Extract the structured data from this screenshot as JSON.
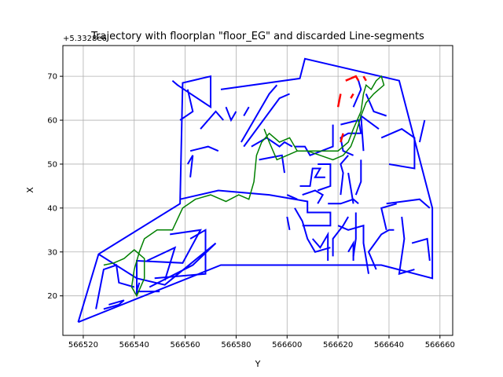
{
  "chart_data": {
    "type": "line",
    "title": "Trajectory with floorplan \"floor_EG\" and discarded Line-segments",
    "xlabel": "Y",
    "ylabel": "X",
    "y_offset_label": "+5.3328e6",
    "xlim": [
      566512,
      566665
    ],
    "ylim": [
      11,
      77
    ],
    "x_ticks": [
      566520,
      566540,
      566560,
      566580,
      566600,
      566620,
      566640,
      566660
    ],
    "y_ticks": [
      20,
      30,
      40,
      50,
      60,
      70
    ],
    "x_tick_labels": [
      "566520",
      "566540",
      "566560",
      "566580",
      "566600",
      "566620",
      "566640",
      "566660"
    ],
    "y_tick_labels": [
      "20",
      "30",
      "40",
      "50",
      "60",
      "70"
    ],
    "grid": true,
    "colors": {
      "floorplan": "#0000ff",
      "trajectory": "#008000",
      "discarded": "#ff0000"
    },
    "series": [
      {
        "type": "floorplan",
        "segments": [
          [
            [
              566518,
              14
            ],
            [
              566526,
              29.5
            ],
            [
              566558,
              41
            ],
            [
              566559,
              68.5
            ],
            [
              566570,
              70
            ],
            [
              566570,
              63
            ],
            [
              566557,
              68
            ],
            [
              566555,
              69
            ]
          ],
          [
            [
              566574,
              67
            ],
            [
              566605,
              69.5
            ],
            [
              566607,
              74
            ],
            [
              566644,
              69
            ],
            [
              566657,
              40
            ],
            [
              566657,
              24
            ],
            [
              566637,
              27
            ],
            [
              566611,
              27
            ],
            [
              566574,
              27
            ],
            [
              566518,
              14
            ]
          ],
          [
            [
              566526,
              29.5
            ],
            [
              566541,
              24
            ],
            [
              566552,
              22.5
            ],
            [
              566572,
              32
            ],
            [
              566563,
              27
            ],
            [
              566546,
              22
            ]
          ],
          [
            [
              566545,
              28
            ],
            [
              566556,
              31
            ],
            [
              566552,
              23.5
            ]
          ],
          [
            [
              566554,
              34
            ],
            [
              566566,
              35
            ],
            [
              566559,
              27.5
            ],
            [
              566541,
              28
            ],
            [
              566541,
              20
            ]
          ],
          [
            [
              566562,
              33
            ],
            [
              566568,
              35
            ],
            [
              566568,
              25
            ],
            [
              566548,
              24
            ]
          ],
          [
            [
              566530,
              18
            ],
            [
              566536,
              19
            ],
            [
              566534,
              18
            ],
            [
              566528,
              17
            ]
          ],
          [
            [
              566525,
              17
            ],
            [
              566528,
              26
            ],
            [
              566533,
              27
            ],
            [
              566534,
              23
            ],
            [
              566540,
              22
            ]
          ],
          [
            [
              566542,
              23
            ],
            [
              566541,
              21
            ],
            [
              566550,
              21
            ]
          ],
          [
            [
              566558,
              42
            ],
            [
              566573,
              44
            ],
            [
              566593,
              43
            ],
            [
              566608,
              41.5
            ],
            [
              566608,
              39
            ],
            [
              566617,
              39
            ],
            [
              566617,
              36
            ],
            [
              566606,
              36
            ]
          ],
          [
            [
              566620,
              36
            ],
            [
              566624,
              35
            ],
            [
              566630,
              36
            ],
            [
              566630,
              32
            ],
            [
              566632,
              25
            ]
          ],
          [
            [
              566635,
              26
            ],
            [
              566632,
              30
            ],
            [
              566637,
              34
            ],
            [
              566640,
              35
            ],
            [
              566642,
              35
            ]
          ],
          [
            [
              566643,
              41
            ],
            [
              566637,
              40
            ],
            [
              566639,
              35
            ]
          ],
          [
            [
              566645,
              38
            ],
            [
              566646,
              33
            ],
            [
              566644,
              25
            ],
            [
              566650,
              26
            ]
          ],
          [
            [
              566649,
              32
            ],
            [
              566655,
              33
            ],
            [
              566656,
              28
            ]
          ],
          [
            [
              566603,
              40
            ],
            [
              566606,
              37
            ],
            [
              566608,
              33
            ],
            [
              566611,
              30
            ],
            [
              566617,
              31
            ]
          ],
          [
            [
              566610,
              33
            ],
            [
              566613,
              31
            ],
            [
              566616,
              34
            ],
            [
              566616,
              28
            ]
          ],
          [
            [
              566618,
              29
            ],
            [
              566618,
              33
            ],
            [
              566622,
              36
            ],
            [
              566624,
              38
            ]
          ],
          [
            [
              566627,
              39
            ],
            [
              566627,
              33
            ],
            [
              566626,
              29
            ]
          ],
          [
            [
              566624,
              30
            ],
            [
              566626,
              32
            ],
            [
              566626,
              28
            ]
          ],
          [
            [
              566616,
              41
            ],
            [
              566621,
              41
            ],
            [
              566626,
              42
            ],
            [
              566628,
              41
            ]
          ],
          [
            [
              566621,
              43
            ],
            [
              566622,
              48
            ],
            [
              566621,
              50
            ],
            [
              566624,
              52
            ]
          ],
          [
            [
              566626,
              52
            ],
            [
              566622,
              53
            ],
            [
              566621,
              56
            ],
            [
              566624,
              57
            ],
            [
              566629,
              57
            ],
            [
              566628,
              60
            ],
            [
              566621,
              59
            ]
          ],
          [
            [
              566618,
              59
            ],
            [
              566618,
              54
            ],
            [
              566609,
              52
            ],
            [
              566607,
              54
            ],
            [
              566603,
              54
            ]
          ],
          [
            [
              566605,
              45
            ],
            [
              566609,
              45
            ],
            [
              566610,
              49
            ],
            [
              566613,
              49
            ],
            [
              566611,
              47
            ],
            [
              566615,
              47
            ]
          ],
          [
            [
              566606,
              43
            ],
            [
              566611,
              44
            ],
            [
              566614,
              43
            ],
            [
              566612,
              41
            ]
          ],
          [
            [
              566600,
              43
            ],
            [
              566604,
              42
            ]
          ],
          [
            [
              566600,
              38
            ],
            [
              566601,
              35
            ]
          ],
          [
            [
              566612,
              44
            ],
            [
              566617,
              45
            ],
            [
              566617,
              50
            ],
            [
              566612,
              50
            ]
          ],
          [
            [
              566626,
              41
            ],
            [
              566624,
              48
            ]
          ],
          [
            [
              566627,
              43
            ],
            [
              566629,
              46
            ],
            [
              566629,
              51
            ]
          ],
          [
            [
              566630,
              53
            ],
            [
              566629,
              61
            ],
            [
              566636,
              58
            ]
          ],
          [
            [
              566626,
              63
            ],
            [
              566629,
              67
            ],
            [
              566628,
              69
            ]
          ],
          [
            [
              566631,
              66
            ],
            [
              566634,
              62
            ],
            [
              566639,
              61
            ]
          ],
          [
            [
              566637,
              56
            ],
            [
              566645,
              58
            ],
            [
              566650,
              56
            ],
            [
              566650,
              49
            ],
            [
              566640,
              50
            ]
          ],
          [
            [
              566652,
              55
            ],
            [
              566654,
              60
            ]
          ],
          [
            [
              566639,
              41
            ],
            [
              566652,
              42
            ],
            [
              566656,
              40
            ]
          ],
          [
            [
              566586,
              54
            ],
            [
              566592,
              56
            ],
            [
              566597,
              54
            ],
            [
              566599,
              55
            ],
            [
              566602,
              54
            ]
          ],
          [
            [
              566583,
              54
            ],
            [
              566597,
              65
            ],
            [
              566601,
              66
            ]
          ],
          [
            [
              566582,
              55
            ],
            [
              566593,
              66
            ],
            [
              566596,
              68
            ]
          ],
          [
            [
              566589,
              51
            ],
            [
              566598,
              52
            ],
            [
              566599,
              48
            ]
          ],
          [
            [
              566562,
              53
            ],
            [
              566569,
              54
            ],
            [
              566573,
              53
            ]
          ],
          [
            [
              566558,
              60
            ],
            [
              566563,
              62
            ],
            [
              566561,
              67
            ]
          ],
          [
            [
              566566,
              58
            ],
            [
              566572,
              62
            ],
            [
              566575,
              60
            ]
          ],
          [
            [
              566576,
              63
            ],
            [
              566578,
              60
            ],
            [
              566580,
              62
            ]
          ],
          [
            [
              566583,
              61
            ],
            [
              566585,
              63
            ]
          ],
          [
            [
              566561,
              50
            ],
            [
              566563,
              52
            ],
            [
              566562,
              47
            ]
          ]
        ]
      },
      {
        "type": "trajectory",
        "name": "",
        "points": [
          [
            566528,
            27
          ],
          [
            566532,
            27.5
          ],
          [
            566536,
            28.5
          ],
          [
            566540,
            30.5
          ],
          [
            566544,
            28.5
          ],
          [
            566544,
            24
          ],
          [
            566541,
            20
          ],
          [
            566539,
            22
          ],
          [
            566540,
            26
          ],
          [
            566542,
            30
          ],
          [
            566544,
            33
          ],
          [
            566549,
            35
          ],
          [
            566555,
            35
          ],
          [
            566559,
            40
          ],
          [
            566564,
            42
          ],
          [
            566570,
            43
          ],
          [
            566576,
            41.5
          ],
          [
            566581,
            43
          ],
          [
            566585,
            42
          ],
          [
            566587,
            46
          ],
          [
            566588,
            52
          ],
          [
            566590,
            55
          ],
          [
            566593,
            57
          ],
          [
            566597,
            55
          ],
          [
            566601,
            56
          ],
          [
            566604,
            53
          ],
          [
            566610,
            53
          ],
          [
            566616,
            53
          ],
          [
            566620,
            53
          ],
          [
            566622,
            54
          ],
          [
            566624,
            55
          ],
          [
            566626,
            58
          ],
          [
            566629,
            62
          ],
          [
            566630,
            66
          ],
          [
            566631,
            68
          ],
          [
            566633,
            67
          ],
          [
            566635,
            69
          ],
          [
            566637,
            70
          ],
          [
            566638,
            68
          ],
          [
            566634,
            66
          ],
          [
            566631,
            64
          ],
          [
            566629,
            61
          ],
          [
            566627,
            57
          ],
          [
            566625,
            54
          ],
          [
            566622,
            52
          ],
          [
            566618,
            51
          ],
          [
            566613,
            52
          ],
          [
            566608,
            53
          ],
          [
            566604,
            53
          ],
          [
            566600,
            52
          ],
          [
            566596,
            51
          ],
          [
            566593,
            55
          ],
          [
            566591,
            58
          ]
        ]
      },
      {
        "type": "discarded",
        "segments": [
          [
            [
              566620,
              63
            ],
            [
              566621,
              66
            ]
          ],
          [
            [
              566623,
              69
            ],
            [
              566627,
              70
            ],
            [
              566628,
              69
            ]
          ],
          [
            [
              566630,
              70
            ],
            [
              566631,
              69
            ]
          ],
          [
            [
              566621,
              55
            ],
            [
              566622,
              57
            ]
          ],
          [
            [
              566625,
              65
            ],
            [
              566626,
              66
            ]
          ]
        ]
      }
    ]
  }
}
